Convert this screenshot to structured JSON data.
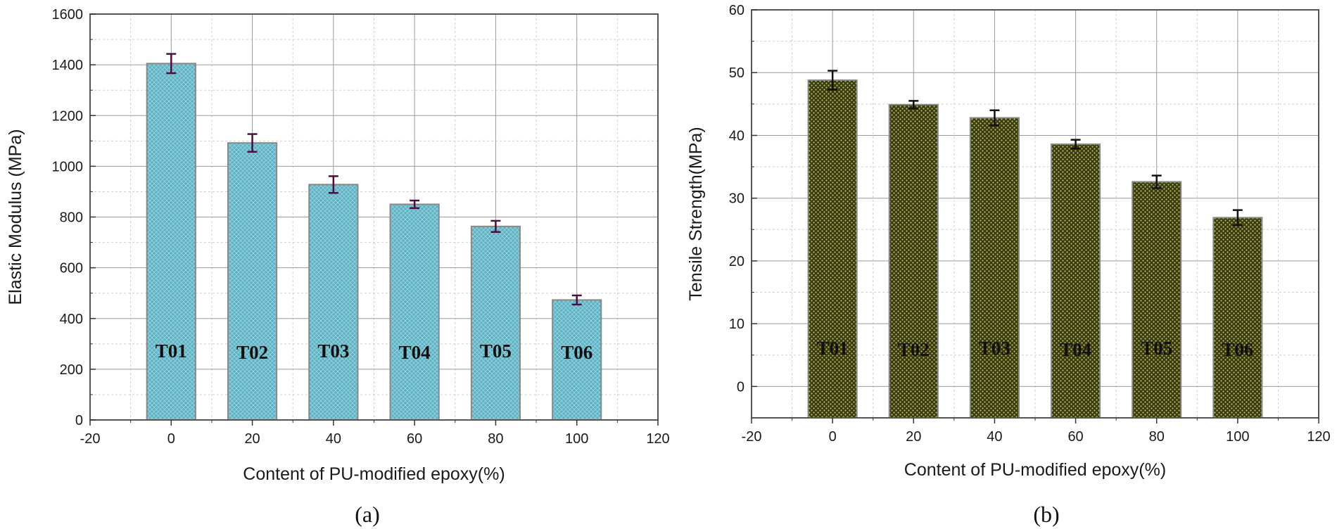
{
  "chart_data": [
    {
      "type": "bar",
      "panel_label": "(a)",
      "title": "",
      "xlabel": "Content of PU-modified epoxy(%)",
      "ylabel": "Elastic Modulus (MPa)",
      "xlim": [
        -20,
        120
      ],
      "ylim": [
        0,
        1600
      ],
      "xticks": [
        "-20",
        "0",
        "20",
        "40",
        "60",
        "80",
        "100",
        "120"
      ],
      "yticks": [
        "0",
        "200",
        "400",
        "600",
        "800",
        "1000",
        "1200",
        "1400",
        "1600"
      ],
      "x": [
        0,
        20,
        40,
        60,
        80,
        100
      ],
      "values": [
        1405,
        1092,
        928,
        850,
        763,
        473
      ],
      "errors": [
        38,
        35,
        33,
        15,
        22,
        18
      ],
      "bar_labels": [
        "T01",
        "T02",
        "T03",
        "T04",
        "T05",
        "T06"
      ],
      "bar_width": 12,
      "grid": true,
      "bar_color": "#5fb0c2",
      "bar_pattern_color": "#8fd0dc",
      "bar_edge_color": "#888888",
      "error_color": "#4a1040"
    },
    {
      "type": "bar",
      "panel_label": "(b)",
      "title": "",
      "xlabel": "Content of PU-modified epoxy(%)",
      "ylabel": "Tensile Strength(MPa)",
      "xlim": [
        -20,
        120
      ],
      "ylim": [
        -5,
        60
      ],
      "xticks": [
        "-20",
        "0",
        "20",
        "40",
        "60",
        "80",
        "100",
        "120"
      ],
      "yticks": [
        "0",
        "10",
        "20",
        "30",
        "40",
        "50",
        "60"
      ],
      "x": [
        0,
        20,
        40,
        60,
        80,
        100
      ],
      "values": [
        48.8,
        44.9,
        42.8,
        38.6,
        32.6,
        26.9
      ],
      "errors": [
        1.5,
        0.6,
        1.2,
        0.7,
        1.0,
        1.2
      ],
      "bar_labels": [
        "T01",
        "T02",
        "T03",
        "T04",
        "T05",
        "T06"
      ],
      "bar_width": 12,
      "bar_baseline": -5,
      "grid": true,
      "bar_color": "#3a3a10",
      "bar_pattern_color": "#b8c060",
      "bar_edge_color": "#888888",
      "error_color": "#111111"
    }
  ]
}
